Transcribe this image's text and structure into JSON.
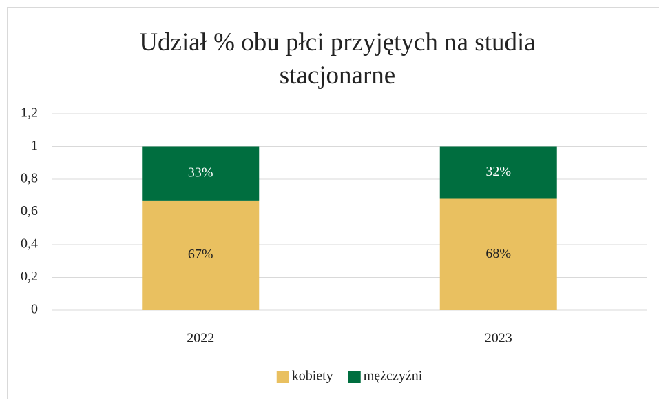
{
  "chart_data": {
    "type": "stacked_bar",
    "title": "Udział % obu płci przyjętych na studia stacjonarne",
    "categories": [
      "2022",
      "2023"
    ],
    "series": [
      {
        "name": "kobiety",
        "color": "#E9C060",
        "values": [
          0.67,
          0.68
        ],
        "value_labels": [
          "67%",
          "68%"
        ]
      },
      {
        "name": "mężczyźni",
        "color": "#006E3F",
        "values": [
          0.33,
          0.32
        ],
        "value_labels": [
          "33%",
          "32%"
        ]
      }
    ],
    "ylim": [
      0,
      1.2
    ],
    "yticks": [
      0,
      {
        "value": 0.2,
        "label": "0,2"
      },
      {
        "value": 0.4,
        "label": "0,4"
      },
      {
        "value": 0.6,
        "label": "0,6"
      },
      {
        "value": 0.8,
        "label": "0,8"
      },
      1,
      {
        "value": 1.2,
        "label": "1,2"
      }
    ],
    "grid": true,
    "legend": "bottom"
  }
}
